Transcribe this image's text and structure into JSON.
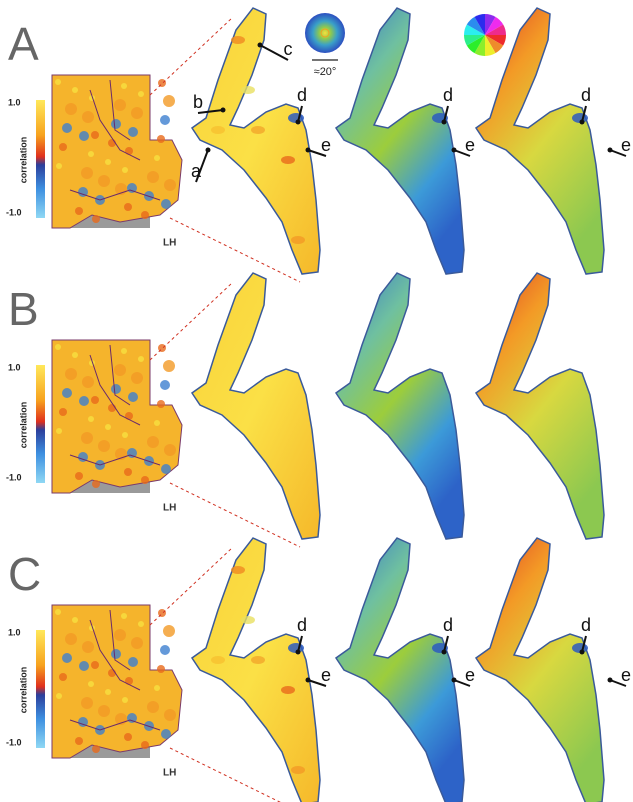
{
  "panels": [
    {
      "label": "A",
      "colorbar": {
        "max": "1.0",
        "title": "correlation",
        "min": "-1.0"
      },
      "hemisphere": "LH",
      "annotations": [
        "a",
        "b",
        "c",
        "d",
        "e",
        "d",
        "e",
        "d",
        "e"
      ]
    },
    {
      "label": "B",
      "colorbar": {
        "max": "1.0",
        "title": "correlation",
        "min": "-1.0"
      },
      "hemisphere": "LH"
    },
    {
      "label": "C",
      "colorbar": {
        "max": "1.0",
        "title": "correlation",
        "min": "-1.0"
      },
      "hemisphere": "LH",
      "annotations": [
        "d",
        "e",
        "d",
        "e",
        "d",
        "e"
      ]
    }
  ],
  "legend": {
    "scale": "≈20°"
  }
}
